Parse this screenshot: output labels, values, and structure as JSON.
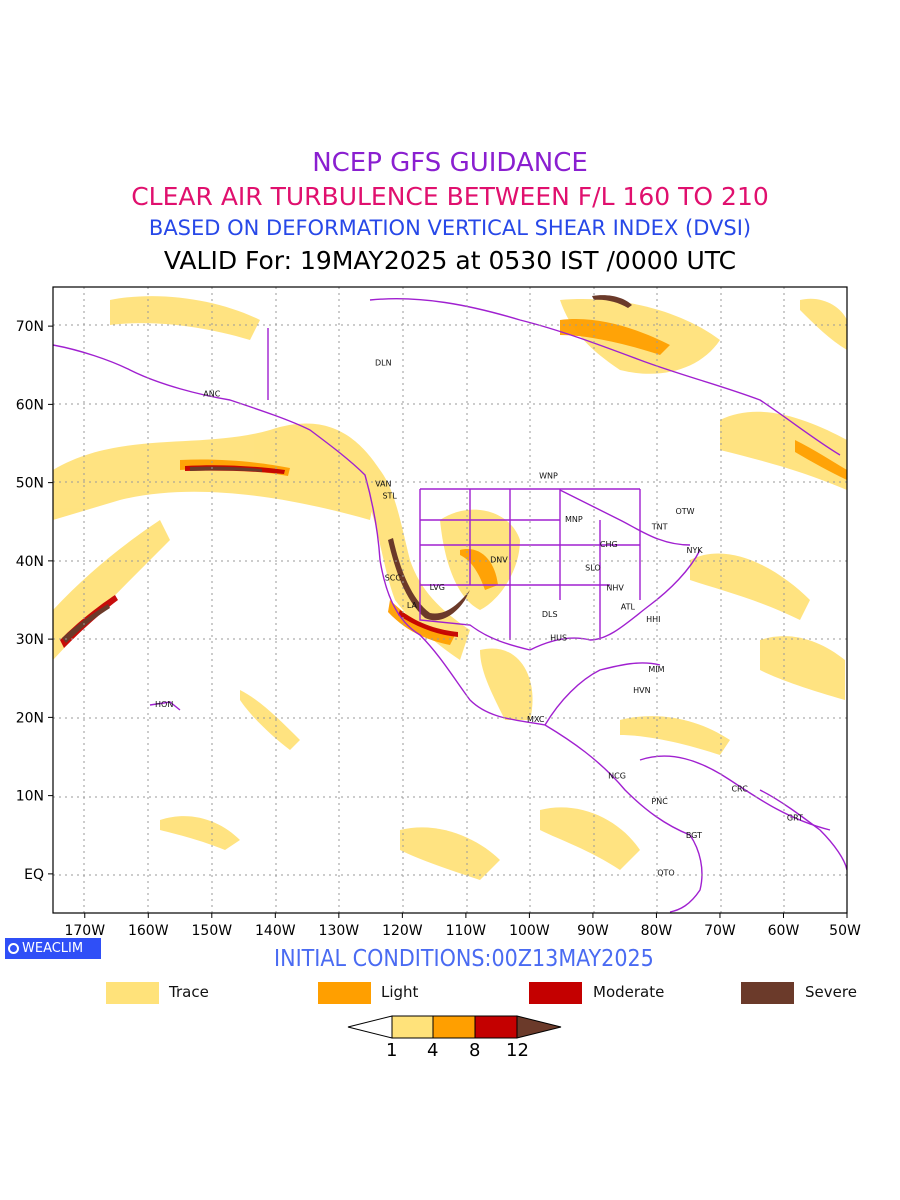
{
  "titles": {
    "line1": "NCEP GFS GUIDANCE",
    "line2": "CLEAR AIR TURBULENCE BETWEEN F/L 160 TO 210",
    "line3": "BASED ON DEFORMATION VERTICAL SHEAR INDEX (DVSI)",
    "line4": "VALID For: 19MAY2025 at 0530 IST /0000 UTC"
  },
  "colors": {
    "line1": "#8a1fd0",
    "line2": "#e0106e",
    "line3": "#2748e8",
    "line4": "#000000",
    "trace": "#ffe27a",
    "light": "#ff9f00",
    "moderate": "#c40000",
    "severe": "#6b3a2a",
    "borders": "#a020d0"
  },
  "axes": {
    "lat_labels": [
      "70N",
      "60N",
      "50N",
      "40N",
      "30N",
      "20N",
      "10N",
      "EQ"
    ],
    "lon_labels": [
      "170W",
      "160W",
      "150W",
      "140W",
      "130W",
      "120W",
      "110W",
      "100W",
      "90W",
      "80W",
      "70W",
      "60W",
      "50W"
    ]
  },
  "stations": [
    {
      "code": "ANC",
      "lon": -150,
      "lat": 61
    },
    {
      "code": "DLN",
      "lon": -123,
      "lat": 65
    },
    {
      "code": "VAN",
      "lon": -123,
      "lat": 49.5
    },
    {
      "code": "STL",
      "lon": -122,
      "lat": 48
    },
    {
      "code": "WNP",
      "lon": -97,
      "lat": 50.5
    },
    {
      "code": "MNP",
      "lon": -93,
      "lat": 45
    },
    {
      "code": "OTW",
      "lon": -75.5,
      "lat": 46
    },
    {
      "code": "TNT",
      "lon": -79.5,
      "lat": 44
    },
    {
      "code": "CHG",
      "lon": -87.5,
      "lat": 41.8
    },
    {
      "code": "NYK",
      "lon": -74,
      "lat": 41
    },
    {
      "code": "DNV",
      "lon": -104.8,
      "lat": 39.8
    },
    {
      "code": "SLO",
      "lon": -90,
      "lat": 38.8
    },
    {
      "code": "SCC",
      "lon": -121.5,
      "lat": 37.5
    },
    {
      "code": "LVG",
      "lon": -114.5,
      "lat": 36.3
    },
    {
      "code": "NHV",
      "lon": -86.5,
      "lat": 36.2
    },
    {
      "code": "LA",
      "lon": -118.5,
      "lat": 34
    },
    {
      "code": "ATL",
      "lon": -84.5,
      "lat": 33.8
    },
    {
      "code": "DLS",
      "lon": -96.8,
      "lat": 32.8
    },
    {
      "code": "HHI",
      "lon": -80.5,
      "lat": 32.2
    },
    {
      "code": "HUS",
      "lon": -95.4,
      "lat": 29.8
    },
    {
      "code": "MIM",
      "lon": -80,
      "lat": 25.8
    },
    {
      "code": "HVN",
      "lon": -82.3,
      "lat": 23.1
    },
    {
      "code": "HON",
      "lon": -157.5,
      "lat": 21.3
    },
    {
      "code": "MXC",
      "lon": -99,
      "lat": 19.4
    },
    {
      "code": "NCG",
      "lon": -86.2,
      "lat": 12.2
    },
    {
      "code": "CRC",
      "lon": -66.9,
      "lat": 10.5
    },
    {
      "code": "PNC",
      "lon": -79.5,
      "lat": 8.9
    },
    {
      "code": "GRT",
      "lon": -58.2,
      "lat": 6.8
    },
    {
      "code": "BGT",
      "lon": -74.1,
      "lat": 4.6
    },
    {
      "code": "QTO",
      "lon": -78.5,
      "lat": -0.2
    }
  ],
  "logo": {
    "label": "WEACLIM"
  },
  "initial_conditions": "INITIAL CONDITIONS:00Z13MAY2025",
  "legend": [
    {
      "label": "Trace",
      "color": "#ffe27a"
    },
    {
      "label": "Light",
      "color": "#ff9f00"
    },
    {
      "label": "Moderate",
      "color": "#c40000"
    },
    {
      "label": "Severe",
      "color": "#6b3a2a"
    }
  ],
  "colorbar_ticks": [
    "1",
    "4",
    "8",
    "12"
  ]
}
